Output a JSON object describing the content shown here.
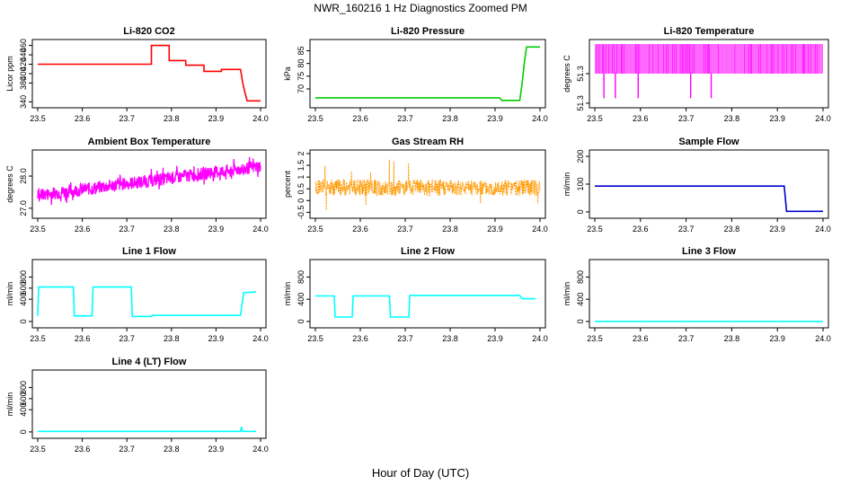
{
  "page": {
    "title": "NWR_160216  1 Hz Diagnostics Zoomed PM",
    "xlabel": "Hour of Day (UTC)"
  },
  "chart_data": [
    {
      "type": "line",
      "title": "Li-820 CO2",
      "ylabel": "Licor ppm",
      "color": "#ff0000",
      "xlim": [
        23.5,
        24.0
      ],
      "ylim": [
        335,
        465
      ],
      "xticks": [
        23.5,
        23.6,
        23.7,
        23.8,
        23.9,
        24.0
      ],
      "yticks": [
        340,
        380,
        400,
        420,
        440,
        460
      ],
      "x": [
        23.5,
        23.755,
        23.755,
        23.795,
        23.795,
        23.832,
        23.832,
        23.873,
        23.873,
        23.912,
        23.912,
        23.955,
        23.96,
        23.965,
        23.97,
        24.0
      ],
      "y": [
        420,
        420,
        460,
        460,
        428,
        428,
        418,
        418,
        405,
        405,
        409,
        409,
        380,
        360,
        342,
        342
      ]
    },
    {
      "type": "line",
      "title": "Li-820 Pressure",
      "ylabel": "kPa",
      "color": "#00cc00",
      "xlim": [
        23.5,
        24.0
      ],
      "ylim": [
        64,
        88
      ],
      "xticks": [
        23.5,
        23.6,
        23.7,
        23.8,
        23.9,
        24.0
      ],
      "yticks": [
        70,
        75,
        80,
        85
      ],
      "x": [
        23.5,
        23.91,
        23.915,
        23.955,
        23.96,
        23.965,
        23.97,
        24.0
      ],
      "y": [
        66.5,
        66.5,
        65.5,
        65.5,
        72,
        80,
        86.5,
        86.5
      ]
    },
    {
      "type": "line",
      "title": "Li-820 Temperature",
      "ylabel": "degrees C",
      "color": "#ff00ff",
      "xlim": [
        23.5,
        24.0
      ],
      "ylim": [
        51.249,
        51.311
      ],
      "xticks": [
        23.5,
        23.6,
        23.7,
        23.8,
        23.9,
        24.0
      ],
      "yticks": [
        51.25,
        51.28
      ],
      "band_values": [
        51.28,
        51.31
      ],
      "spikes_x": [
        23.52,
        23.545,
        23.595,
        23.71,
        23.755
      ],
      "spike_value": 51.255
    },
    {
      "type": "line",
      "title": "Ambient Box Temperature",
      "ylabel": "degrees C",
      "color": "#ff00ff",
      "xlim": [
        23.5,
        24.0
      ],
      "ylim": [
        26.8,
        28.7
      ],
      "xticks": [
        23.5,
        23.6,
        23.7,
        23.8,
        23.9,
        24.0
      ],
      "yticks": [
        27.0,
        28.0
      ],
      "trend_x": [
        23.5,
        24.0
      ],
      "trend_y": [
        27.4,
        28.3
      ],
      "spread": 0.2
    },
    {
      "type": "line",
      "title": "Gas Stream RH",
      "ylabel": "percent",
      "color": "#ff9900",
      "xlim": [
        23.5,
        24.0
      ],
      "ylim": [
        -0.6,
        2.0
      ],
      "xticks": [
        23.5,
        23.6,
        23.7,
        23.8,
        23.9,
        24.0
      ],
      "yticks": [
        -0.5,
        0.0,
        0.5,
        1.0,
        1.5,
        2.0
      ],
      "mean": 0.55,
      "spread": 0.35
    },
    {
      "type": "line",
      "title": "Sample Flow",
      "ylabel": "ml/min",
      "color": "#0000cc",
      "xlim": [
        23.5,
        24.0
      ],
      "ylim": [
        -10,
        210
      ],
      "xticks": [
        23.5,
        23.6,
        23.7,
        23.8,
        23.9,
        24.0
      ],
      "yticks": [
        0,
        100,
        200
      ],
      "x": [
        23.5,
        23.915,
        23.92,
        24.0
      ],
      "y": [
        93,
        93,
        2,
        2
      ]
    },
    {
      "type": "line",
      "title": "Line 1 Flow",
      "ylabel": "ml/min",
      "color": "#00ffff",
      "xlim": [
        23.5,
        24.0
      ],
      "ylim": [
        -50,
        1050
      ],
      "xticks": [
        23.5,
        23.6,
        23.7,
        23.8,
        23.9,
        24.0
      ],
      "yticks": [
        0,
        400,
        600,
        800
      ],
      "x": [
        23.5,
        23.502,
        23.58,
        23.582,
        23.622,
        23.624,
        23.71,
        23.712,
        23.755,
        23.757,
        23.955,
        23.962,
        23.99
      ],
      "y": [
        100,
        620,
        620,
        100,
        100,
        620,
        620,
        90,
        90,
        110,
        110,
        520,
        530
      ]
    },
    {
      "type": "line",
      "title": "Line 2 Flow",
      "ylabel": "ml/min",
      "color": "#00ffff",
      "xlim": [
        23.5,
        24.0
      ],
      "ylim": [
        -50,
        1050
      ],
      "xticks": [
        23.5,
        23.6,
        23.7,
        23.8,
        23.9,
        24.0
      ],
      "yticks": [
        0,
        400,
        800
      ],
      "x": [
        23.5,
        23.542,
        23.544,
        23.582,
        23.584,
        23.665,
        23.667,
        23.708,
        23.71,
        23.955,
        23.96,
        23.99
      ],
      "y": [
        460,
        460,
        80,
        80,
        460,
        460,
        80,
        80,
        470,
        470,
        410,
        410
      ]
    },
    {
      "type": "line",
      "title": "Line 3 Flow",
      "ylabel": "ml/min",
      "color": "#00ffff",
      "xlim": [
        23.5,
        24.0
      ],
      "ylim": [
        -50,
        1050
      ],
      "xticks": [
        23.5,
        23.6,
        23.7,
        23.8,
        23.9,
        24.0
      ],
      "yticks": [
        0,
        400,
        800
      ],
      "x": [
        23.5,
        24.0
      ],
      "y": [
        0,
        0
      ]
    },
    {
      "type": "line",
      "title": "Line 4 (LT) Flow",
      "ylabel": "ml/min",
      "color": "#00ffff",
      "xlim": [
        23.5,
        24.0
      ],
      "ylim": [
        -50,
        1050
      ],
      "xticks": [
        23.5,
        23.6,
        23.7,
        23.8,
        23.9,
        24.0
      ],
      "yticks": [
        0,
        400,
        600,
        800
      ],
      "x": [
        23.5,
        23.955,
        23.957,
        23.959,
        23.961,
        23.99
      ],
      "y": [
        10,
        10,
        90,
        20,
        10,
        10
      ]
    }
  ]
}
